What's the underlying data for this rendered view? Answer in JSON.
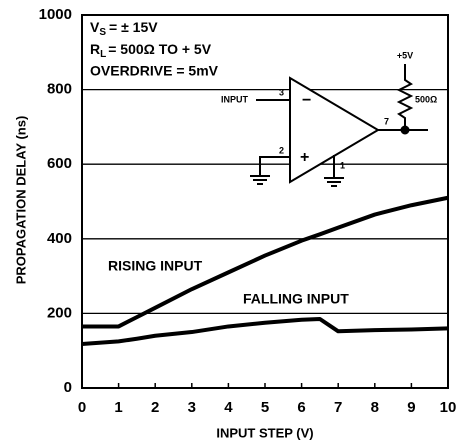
{
  "chart_data": {
    "type": "line",
    "xlabel": "INPUT STEP (V)",
    "ylabel": "PROPAGATION DELAY (ns)",
    "x": [
      0,
      1,
      1.5,
      2,
      3,
      4,
      5,
      6,
      6.5,
      7,
      8,
      9,
      10
    ],
    "series": [
      {
        "name": "RISING INPUT",
        "color": "#000000",
        "values": [
          165,
          165,
          190,
          215,
          265,
          310,
          355,
          395,
          412,
          430,
          465,
          490,
          510
        ]
      },
      {
        "name": "FALLING INPUT",
        "color": "#000000",
        "values": [
          118,
          125,
          132,
          140,
          150,
          165,
          175,
          183,
          185,
          152,
          155,
          157,
          160
        ]
      }
    ],
    "xlim": [
      0,
      10
    ],
    "xticks": [
      0,
      1,
      2,
      3,
      4,
      5,
      6,
      7,
      8,
      9,
      10
    ],
    "ylim": [
      0,
      1000
    ],
    "yticks": [
      0,
      200,
      400,
      600,
      800,
      1000
    ],
    "grid": true,
    "annotations": [
      {
        "main": "V",
        "sub": "S",
        "rest": "= ± 15V"
      },
      {
        "main": "R",
        "sub": "L",
        "rest": "= 500Ω TO + 5V"
      },
      {
        "main": "OVERDRIVE = 5mV"
      }
    ]
  },
  "schematic": {
    "input": "INPUT",
    "pin_inverting": "3",
    "pin_noninverting": "2",
    "pin_output": "7",
    "pin_ground": "1",
    "supply": "+5V",
    "resistor": "500Ω",
    "minus": "−",
    "plus": "+"
  }
}
